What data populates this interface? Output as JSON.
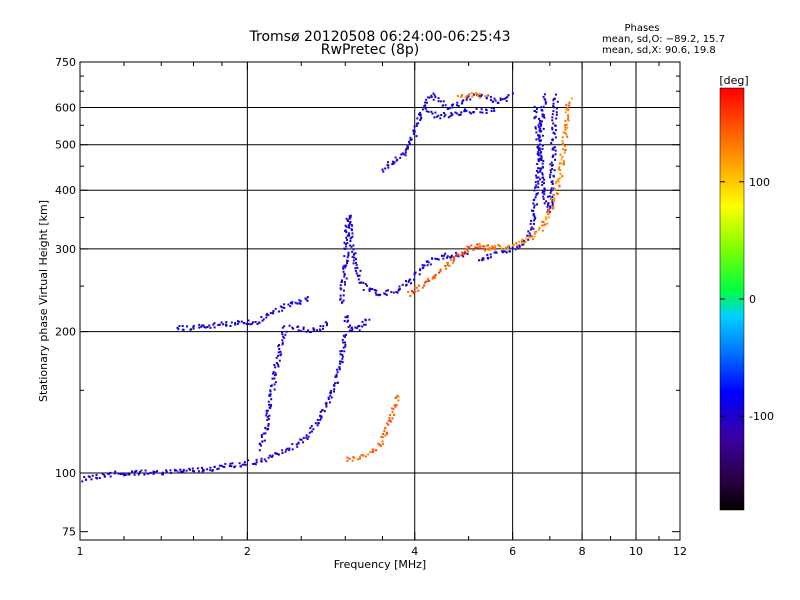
{
  "chart_data": {
    "type": "scatter",
    "title": "Tromsø 20120508 06:24:00-06:25:43",
    "subtitle": "RwPretec (8p)",
    "xlabel": "Frequency [MHz]",
    "ylabel": "Stationary phase Virtual Height [km]",
    "x_scale": "log",
    "y_scale": "log",
    "xlim": [
      1,
      12
    ],
    "ylim": [
      72,
      750
    ],
    "x_ticks": [
      1,
      2,
      4,
      6,
      8,
      10,
      12
    ],
    "x_minor_ticks": [
      1.2,
      1.4,
      1.6,
      1.8,
      2.5,
      3,
      3.5,
      5,
      7,
      9,
      11
    ],
    "y_ticks": [
      75,
      100,
      200,
      300,
      400,
      500,
      600,
      750
    ],
    "y_minor_ticks": [
      150,
      250,
      350,
      450,
      550,
      650,
      700
    ],
    "grid_x": [
      2,
      4,
      6,
      8,
      10
    ],
    "grid_y": [
      100,
      200,
      300,
      400,
      500,
      600
    ],
    "legend": {
      "heading": "Phases",
      "line_o": "mean, sd,O: −89.2, 15.7",
      "line_x": "mean, sd,X:  90.6, 19.8"
    },
    "colorbar": {
      "label": "[deg]",
      "ticks": [
        100,
        0,
        -100
      ],
      "range": [
        -180,
        180
      ]
    },
    "traces": [
      {
        "phase": -95,
        "points": [
          [
            1.0,
            97
          ],
          [
            1.05,
            98
          ],
          [
            1.1,
            99
          ],
          [
            1.2,
            100
          ],
          [
            1.3,
            100
          ],
          [
            1.4,
            100
          ],
          [
            1.5,
            101
          ],
          [
            1.6,
            102
          ],
          [
            1.7,
            102
          ],
          [
            1.8,
            103
          ],
          [
            1.9,
            104
          ],
          [
            2.0,
            105
          ],
          [
            2.1,
            106
          ],
          [
            2.2,
            108
          ],
          [
            2.3,
            110
          ],
          [
            2.4,
            113
          ],
          [
            2.5,
            117
          ],
          [
            2.6,
            122
          ],
          [
            2.7,
            130
          ],
          [
            2.8,
            142
          ],
          [
            2.9,
            160
          ],
          [
            2.95,
            178
          ],
          [
            3.0,
            200
          ]
        ]
      },
      {
        "phase": -95,
        "points": [
          [
            2.1,
            113
          ],
          [
            2.15,
            122
          ],
          [
            2.2,
            140
          ],
          [
            2.25,
            165
          ],
          [
            2.3,
            190
          ],
          [
            2.35,
            205
          ]
        ]
      },
      {
        "phase": -95,
        "points": [
          [
            1.5,
            203
          ],
          [
            1.7,
            206
          ],
          [
            1.9,
            208
          ],
          [
            2.1,
            210
          ],
          [
            2.3,
            225
          ],
          [
            2.5,
            232
          ],
          [
            2.6,
            235
          ]
        ]
      },
      {
        "phase": -95,
        "points": [
          [
            2.4,
            205
          ],
          [
            2.5,
            202
          ],
          [
            2.6,
            200
          ],
          [
            2.7,
            203
          ],
          [
            2.8,
            210
          ]
        ]
      },
      {
        "phase": -95,
        "points": [
          [
            2.95,
            230
          ],
          [
            3.0,
            270
          ],
          [
            3.02,
            320
          ],
          [
            3.05,
            355
          ],
          [
            3.08,
            310
          ],
          [
            3.12,
            280
          ],
          [
            3.2,
            255
          ],
          [
            3.3,
            245
          ],
          [
            3.4,
            243
          ],
          [
            3.5,
            240
          ],
          [
            3.7,
            245
          ],
          [
            3.9,
            255
          ],
          [
            4.1,
            270
          ],
          [
            4.3,
            285
          ],
          [
            4.5,
            290
          ],
          [
            4.8,
            292
          ],
          [
            5.0,
            293
          ]
        ]
      },
      {
        "phase": -95,
        "points": [
          [
            3.0,
            215
          ],
          [
            3.05,
            205
          ],
          [
            3.1,
            200
          ],
          [
            3.2,
            205
          ],
          [
            3.3,
            215
          ]
        ]
      },
      {
        "phase": -95,
        "points": [
          [
            3.5,
            440
          ],
          [
            3.6,
            455
          ],
          [
            3.7,
            465
          ],
          [
            3.8,
            475
          ],
          [
            3.9,
            495
          ],
          [
            4.0,
            530
          ],
          [
            4.1,
            580
          ],
          [
            4.2,
            620
          ],
          [
            4.3,
            640
          ],
          [
            4.45,
            615
          ],
          [
            4.6,
            600
          ],
          [
            4.8,
            610
          ],
          [
            5.0,
            630
          ],
          [
            5.2,
            640
          ],
          [
            5.4,
            630
          ],
          [
            5.6,
            615
          ],
          [
            5.8,
            625
          ],
          [
            6.0,
            640
          ]
        ]
      },
      {
        "phase": -95,
        "points": [
          [
            4.2,
            585
          ],
          [
            4.4,
            575
          ],
          [
            4.7,
            580
          ],
          [
            5.0,
            590
          ],
          [
            5.3,
            590
          ],
          [
            5.6,
            595
          ]
        ]
      },
      {
        "phase": -95,
        "points": [
          [
            5.2,
            285
          ],
          [
            5.5,
            290
          ],
          [
            5.8,
            295
          ],
          [
            6.0,
            300
          ],
          [
            6.2,
            305
          ],
          [
            6.4,
            320
          ],
          [
            6.5,
            340
          ],
          [
            6.6,
            380
          ],
          [
            6.7,
            450
          ],
          [
            6.75,
            530
          ],
          [
            6.8,
            600
          ],
          [
            6.85,
            640
          ]
        ]
      },
      {
        "phase": -95,
        "points": [
          [
            6.6,
            600
          ],
          [
            6.65,
            560
          ],
          [
            6.7,
            500
          ],
          [
            6.75,
            450
          ],
          [
            6.8,
            420
          ],
          [
            6.85,
            400
          ],
          [
            6.9,
            380
          ],
          [
            7.0,
            360
          ],
          [
            7.05,
            400
          ],
          [
            7.1,
            480
          ],
          [
            7.15,
            600
          ],
          [
            7.2,
            640
          ]
        ]
      },
      {
        "phase": 150,
        "points": [
          [
            3.9,
            240
          ],
          [
            4.0,
            245
          ],
          [
            4.2,
            255
          ],
          [
            4.4,
            265
          ],
          [
            4.6,
            278
          ],
          [
            4.8,
            290
          ],
          [
            5.0,
            300
          ],
          [
            5.2,
            305
          ],
          [
            5.4,
            302
          ],
          [
            5.6,
            300
          ]
        ]
      },
      {
        "phase": 130,
        "points": [
          [
            5.2,
            300
          ],
          [
            5.6,
            302
          ],
          [
            6.0,
            305
          ],
          [
            6.4,
            315
          ],
          [
            6.8,
            335
          ],
          [
            7.0,
            360
          ],
          [
            7.2,
            400
          ],
          [
            7.35,
            450
          ],
          [
            7.45,
            520
          ],
          [
            7.5,
            560
          ],
          [
            7.55,
            600
          ],
          [
            7.6,
            630
          ]
        ]
      },
      {
        "phase": 145,
        "points": [
          [
            3.0,
            107
          ],
          [
            3.2,
            108
          ],
          [
            3.4,
            112
          ],
          [
            3.5,
            118
          ],
          [
            3.6,
            128
          ],
          [
            3.7,
            140
          ],
          [
            3.75,
            148
          ]
        ]
      },
      {
        "phase": 130,
        "points": [
          [
            4.8,
            630
          ],
          [
            5.0,
            635
          ],
          [
            5.2,
            640
          ],
          [
            5.4,
            630
          ]
        ]
      }
    ]
  }
}
